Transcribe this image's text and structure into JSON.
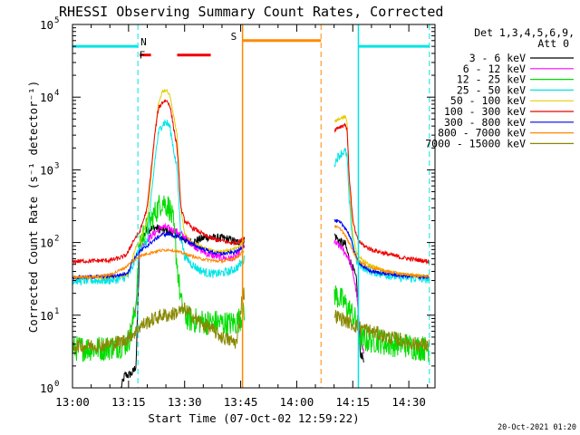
{
  "chart_data": {
    "type": "line",
    "title": "RHESSI Observing Summary Count Rates, Corrected",
    "xlabel": "Start Time (07-Oct-02 12:59:22)",
    "ylabel": "Corrected Count Rate (s⁻¹ detector⁻¹)",
    "x_unit": "minutes after 13:00 UT",
    "xlim": [
      0,
      97
    ],
    "ylim": [
      1,
      100000
    ],
    "yscale": "log",
    "x_ticks": [
      {
        "value": 0,
        "label": "13:00"
      },
      {
        "value": 15,
        "label": "13:15"
      },
      {
        "value": 30,
        "label": "13:30"
      },
      {
        "value": 45,
        "label": "13:45"
      },
      {
        "value": 60,
        "label": "14:00"
      },
      {
        "value": 75,
        "label": "14:15"
      },
      {
        "value": 90,
        "label": "14:30"
      }
    ],
    "y_ticks": [
      {
        "value": 1,
        "base": "10",
        "exp": "0"
      },
      {
        "value": 10,
        "base": "10",
        "exp": "1"
      },
      {
        "value": 100,
        "base": "10",
        "exp": "2"
      },
      {
        "value": 1000,
        "base": "10",
        "exp": "3"
      },
      {
        "value": 10000,
        "base": "10",
        "exp": "4"
      },
      {
        "value": 100000,
        "base": "10",
        "exp": "5"
      }
    ],
    "legend": {
      "placement": "right",
      "header": [
        "Det 1,3,4,5,6,9,",
        "Att 0"
      ],
      "entries": [
        {
          "label": "3 - 6 keV",
          "color": "#000000"
        },
        {
          "label": "6 - 12 keV",
          "color": "#ff00ff"
        },
        {
          "label": "12 - 25 keV",
          "color": "#00dd00"
        },
        {
          "label": "25 - 50 keV",
          "color": "#00e5e5"
        },
        {
          "label": "50 - 100 keV",
          "color": "#e5cc00"
        },
        {
          "label": "100 - 300 keV",
          "color": "#ee0000"
        },
        {
          "label": "300 - 800 keV",
          "color": "#0000ee"
        },
        {
          "label": "800 - 7000 keV",
          "color": "#ff8800"
        },
        {
          "label": "7000 - 15000 keV",
          "color": "#888800"
        }
      ]
    },
    "flags": [
      {
        "label": "N",
        "color": "#00e5e5",
        "bars": [
          [
            0,
            17.5
          ],
          [
            76.5,
            95.5
          ]
        ],
        "level": 50000
      },
      {
        "label": "F",
        "color": "#ee0000",
        "bars": [
          [
            18,
            21
          ],
          [
            28,
            37
          ]
        ],
        "level": 38000
      },
      {
        "label": "S",
        "color": "#ff8800",
        "bars": [
          [
            45.5,
            66.5
          ]
        ],
        "level": 60000
      }
    ],
    "vertical_markers": [
      {
        "x": 17.5,
        "color": "#00e5e5",
        "style": "dashed"
      },
      {
        "x": 45.5,
        "color": "#ff8800",
        "style": "solid"
      },
      {
        "x": 66.5,
        "color": "#ff8800",
        "style": "dashed"
      },
      {
        "x": 76.5,
        "color": "#00e5e5",
        "style": "solid"
      },
      {
        "x": 95.5,
        "color": "#00e5e5",
        "style": "dashed"
      }
    ],
    "data_gap": [
      46,
      70
    ],
    "series": [
      {
        "name": "3 - 6 keV",
        "color": "#000000",
        "noise": 0.06,
        "x": [
          13,
          14,
          15,
          16,
          17,
          18,
          20,
          22,
          24,
          26,
          28,
          30,
          32,
          34,
          36,
          38,
          40,
          42,
          44,
          45.5,
          70,
          71,
          72,
          73,
          74,
          75,
          76,
          77,
          78
        ],
        "y": [
          1,
          1.5,
          1.5,
          1.6,
          2,
          100,
          150,
          160,
          150,
          140,
          130,
          110,
          100,
          110,
          120,
          115,
          115,
          110,
          100,
          110,
          130,
          110,
          100,
          95,
          60,
          45,
          30,
          3,
          2.5
        ]
      },
      {
        "name": "6 - 12 keV",
        "color": "#ff00ff",
        "noise": 0.05,
        "x": [
          14,
          15,
          16,
          17,
          18,
          20,
          22,
          24,
          26,
          28,
          30,
          32,
          34,
          36,
          38,
          40,
          42,
          44,
          45.5,
          70,
          72,
          74,
          75,
          76,
          77,
          78
        ],
        "y": [
          4,
          5,
          8,
          15,
          80,
          110,
          135,
          165,
          155,
          140,
          120,
          95,
          80,
          70,
          65,
          62,
          60,
          65,
          90,
          100,
          85,
          60,
          40,
          20,
          5,
          3
        ]
      },
      {
        "name": "12 - 25 keV",
        "color": "#00dd00",
        "noise": 0.18,
        "x": [
          0,
          2,
          4,
          6,
          8,
          10,
          12,
          14,
          15,
          16,
          17,
          18,
          19,
          20,
          22,
          24,
          26,
          27,
          28,
          29,
          30,
          31,
          32,
          34,
          36,
          38,
          40,
          42,
          44,
          45.5,
          70,
          71,
          72,
          73,
          74,
          75,
          76,
          77,
          78,
          80,
          82,
          84,
          86,
          88,
          90,
          92,
          94,
          95.5
        ],
        "y": [
          3.5,
          3.5,
          3.5,
          3.5,
          3.5,
          3.6,
          3.8,
          4,
          4.5,
          7,
          15,
          100,
          130,
          160,
          250,
          380,
          300,
          180,
          50,
          15,
          10,
          9,
          8.5,
          8.3,
          8,
          8,
          7.8,
          7.6,
          8,
          10,
          20,
          18,
          16,
          14,
          12,
          10,
          8,
          5,
          4.5,
          4.5,
          4.5,
          4,
          4,
          4,
          3.8,
          3.6,
          3.5,
          3.4
        ]
      },
      {
        "name": "25 - 50 keV",
        "color": "#00e5e5",
        "noise": 0.06,
        "x": [
          0,
          4,
          8,
          12,
          14,
          15,
          16,
          17,
          18,
          20,
          22,
          23,
          24,
          25,
          26,
          28,
          29,
          30,
          32,
          34,
          36,
          38,
          40,
          42,
          44,
          45.5,
          70,
          71,
          72,
          73,
          73.5,
          74,
          75,
          76,
          78,
          80,
          84,
          88,
          92,
          95.5
        ],
        "y": [
          30,
          30,
          30,
          31,
          33,
          35,
          45,
          65,
          80,
          100,
          1300,
          3200,
          4300,
          4500,
          4000,
          1000,
          120,
          65,
          50,
          42,
          38,
          37,
          38,
          40,
          45,
          55,
          1200,
          1500,
          1700,
          1800,
          1500,
          400,
          100,
          55,
          45,
          40,
          36,
          33,
          32,
          31
        ]
      },
      {
        "name": "50 - 100 keV",
        "color": "#e5cc00",
        "noise": 0.02,
        "x": [
          0,
          8,
          12,
          14,
          15,
          16,
          17,
          18,
          20,
          22,
          23,
          24,
          25,
          26,
          28,
          29,
          30,
          32,
          34,
          36,
          38,
          40,
          42,
          44,
          45.5,
          70,
          71,
          72,
          73,
          73.5,
          74,
          75,
          76,
          78,
          80,
          84,
          88,
          92,
          95.5
        ],
        "y": [
          33,
          33,
          34,
          35,
          38,
          60,
          90,
          100,
          200,
          3000,
          8000,
          12000,
          12500,
          11000,
          3000,
          300,
          130,
          100,
          90,
          82,
          75,
          75,
          78,
          85,
          100,
          4500,
          5000,
          5200,
          5300,
          4500,
          800,
          130,
          70,
          55,
          48,
          40,
          37,
          35,
          34
        ]
      },
      {
        "name": "100 - 300 keV",
        "color": "#ee0000",
        "noise": 0.03,
        "x": [
          0,
          6,
          10,
          12,
          14,
          15,
          16,
          17,
          18,
          20,
          22,
          23,
          24,
          25,
          26,
          28,
          29,
          30,
          32,
          34,
          36,
          38,
          40,
          42,
          44,
          45.5,
          70,
          71,
          72,
          73,
          73.5,
          74,
          75,
          76,
          77,
          78,
          80,
          84,
          88,
          92,
          95.5
        ],
        "y": [
          55,
          56,
          57,
          60,
          65,
          75,
          100,
          120,
          140,
          300,
          3000,
          7000,
          8500,
          9000,
          8000,
          2000,
          300,
          200,
          160,
          140,
          120,
          110,
          105,
          100,
          100,
          110,
          3500,
          3800,
          4000,
          4200,
          3500,
          900,
          200,
          120,
          100,
          90,
          80,
          70,
          62,
          58,
          55
        ]
      },
      {
        "name": "300 - 800 keV",
        "color": "#0000ee",
        "noise": 0.025,
        "x": [
          0,
          8,
          12,
          14,
          15,
          16,
          17,
          18,
          20,
          22,
          24,
          26,
          28,
          30,
          32,
          34,
          36,
          38,
          40,
          42,
          44,
          45.5,
          70,
          71,
          72,
          73,
          74,
          75,
          76,
          78,
          80,
          84,
          88,
          92,
          95.5
        ],
        "y": [
          33,
          34,
          35,
          37,
          40,
          55,
          65,
          75,
          90,
          110,
          130,
          130,
          120,
          110,
          95,
          85,
          78,
          72,
          70,
          72,
          75,
          90,
          200,
          195,
          180,
          160,
          130,
          90,
          60,
          45,
          40,
          37,
          35,
          34,
          33
        ]
      },
      {
        "name": "800 - 7000 keV",
        "color": "#ff8800",
        "noise": 0.02,
        "x": [
          0,
          6,
          10,
          12,
          14,
          16,
          18,
          20,
          22,
          24,
          26,
          28,
          30,
          32,
          34,
          36,
          38,
          40,
          42,
          44,
          45.5,
          70,
          72,
          74,
          76,
          78,
          80,
          84,
          88,
          92,
          95.5
        ],
        "y": [
          33,
          34,
          36,
          40,
          45,
          55,
          65,
          70,
          75,
          78,
          80,
          75,
          70,
          65,
          60,
          58,
          56,
          55,
          58,
          62,
          75,
          170,
          150,
          100,
          60,
          50,
          45,
          40,
          37,
          35,
          34
        ]
      },
      {
        "name": "7000 - 15000 keV",
        "color": "#888800",
        "noise": 0.1,
        "x": [
          0,
          4,
          8,
          10,
          12,
          14,
          15,
          16,
          17,
          18,
          20,
          22,
          24,
          26,
          28,
          30,
          32,
          34,
          36,
          38,
          40,
          42,
          44,
          45.5,
          70,
          72,
          74,
          76,
          78,
          80,
          82,
          84,
          86,
          88,
          90,
          92,
          94,
          95.5
        ],
        "y": [
          3.8,
          3.8,
          3.9,
          4,
          4.2,
          4.5,
          5,
          5.5,
          6,
          7,
          8,
          9,
          10,
          10,
          11,
          12,
          10,
          8,
          7,
          6,
          5,
          4.5,
          4.2,
          20,
          10,
          9,
          8,
          7,
          6.5,
          6,
          5.5,
          5,
          4.8,
          4.5,
          4.2,
          4,
          3.9,
          3.8
        ]
      }
    ]
  },
  "footer": {
    "timestamp": "20-Oct-2021 01:20"
  }
}
